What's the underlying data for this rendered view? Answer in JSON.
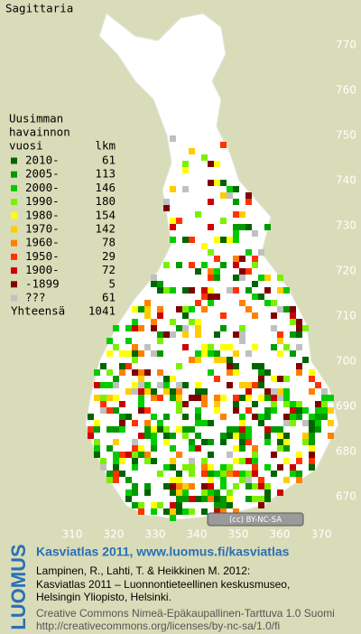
{
  "title": "Sagittaria",
  "legend": {
    "header": [
      "Uusimman",
      "havainnon",
      "vuosi"
    ],
    "count_header": "lkm",
    "rows": [
      {
        "label": "2010-",
        "count": 61,
        "color": "#006400"
      },
      {
        "label": "2005-",
        "count": 113,
        "color": "#009a00"
      },
      {
        "label": "2000-",
        "count": 146,
        "color": "#00cc00"
      },
      {
        "label": "1990-",
        "count": 180,
        "color": "#7cf000"
      },
      {
        "label": "1980-",
        "count": 154,
        "color": "#ffff00"
      },
      {
        "label": "1970-",
        "count": 142,
        "color": "#ffcc00"
      },
      {
        "label": "1960-",
        "count": 78,
        "color": "#ff8000"
      },
      {
        "label": "1950-",
        "count": 29,
        "color": "#ff3300"
      },
      {
        "label": "1900-",
        "count": 72,
        "color": "#cc0000"
      },
      {
        "label": "-1899",
        "count": 5,
        "color": "#800000"
      },
      {
        "label": "???",
        "count": 61,
        "color": "#c0c0c0"
      }
    ],
    "total_label": "Yhteensä",
    "total": 1041
  },
  "y_axis": [
    770,
    760,
    750,
    740,
    730,
    720,
    710,
    700,
    690,
    680,
    670
  ],
  "x_axis": [
    310,
    320,
    330,
    340,
    350,
    360,
    370
  ],
  "license_badge": "(cc) BY-NC-SA",
  "logo": "LUOMUS",
  "footer": {
    "title": "Kasviatlas 2011, www.luomus.fi/kasviatlas",
    "citation": [
      "Lampinen, R., Lahti, T. & Heikkinen M. 2012:",
      "Kasviatlas 2011 – Luonnontieteellinen keskusmuseo,",
      "Helsingin Yliopisto, Helsinki."
    ],
    "license": [
      "Creative Commons Nimeä-Epäkaupallinen-Tarttuva 1.0 Suomi",
      "http://creativecommons.org/licenses/by-nc-sa/1.0/fi"
    ]
  }
}
